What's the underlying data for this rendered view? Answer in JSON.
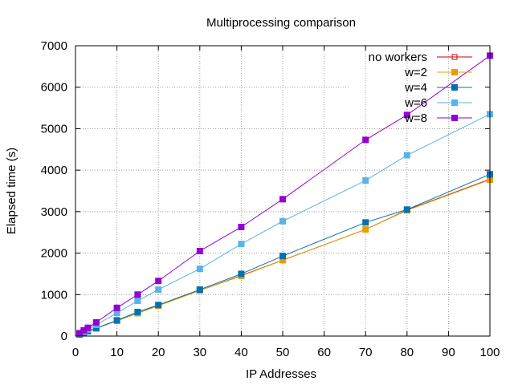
{
  "chart_data": {
    "type": "line",
    "title": "Multiprocessing comparison",
    "xlabel": "IP Addresses",
    "ylabel": "Elapsed time (s)",
    "xlim": [
      0,
      100
    ],
    "ylim": [
      0,
      7000
    ],
    "xticks": [
      0,
      10,
      20,
      30,
      40,
      50,
      60,
      70,
      80,
      90,
      100
    ],
    "yticks": [
      0,
      1000,
      2000,
      3000,
      4000,
      5000,
      6000,
      7000
    ],
    "grid": true,
    "legend_position": "top-right",
    "x": [
      1,
      2,
      3,
      5,
      10,
      15,
      20,
      30,
      40,
      50,
      70,
      80,
      100
    ],
    "series": [
      {
        "name": "no workers",
        "color": "#cc0000",
        "marker": "open-square",
        "values": [
          40,
          80,
          115,
          185,
          370,
          550,
          740,
          1100,
          1460,
          1830,
          2570,
          3040,
          3780
        ]
      },
      {
        "name": "w=2",
        "color": "#e69f00",
        "marker": "filled-square",
        "values": [
          40,
          80,
          115,
          185,
          370,
          550,
          730,
          1100,
          1450,
          1830,
          2570,
          3030,
          3770
        ]
      },
      {
        "name": "w=4",
        "color": "#0072b2",
        "marker": "filled-square",
        "values": [
          40,
          80,
          120,
          190,
          380,
          580,
          750,
          1120,
          1500,
          1930,
          2740,
          3050,
          3900
        ]
      },
      {
        "name": "w=6",
        "color": "#56b4e9",
        "marker": "filled-square",
        "values": [
          60,
          110,
          160,
          270,
          560,
          850,
          1120,
          1620,
          2220,
          2770,
          3750,
          4360,
          5350
        ]
      },
      {
        "name": "w=8",
        "color": "#9400d3",
        "marker": "filled-square",
        "values": [
          70,
          140,
          200,
          330,
          680,
          1000,
          1330,
          2050,
          2630,
          3300,
          4730,
          5330,
          6760
        ]
      }
    ]
  }
}
